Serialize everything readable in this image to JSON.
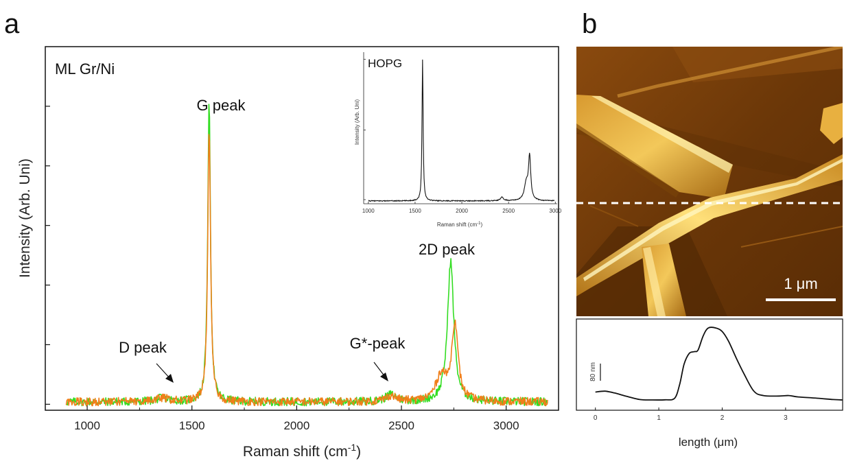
{
  "panel_a": {
    "letter": "a",
    "label": "ML Gr/Ni",
    "annotations": {
      "g_peak": "G peak",
      "d_peak": "D peak",
      "g_star_peak": "G*-peak",
      "d2_peak": "2D peak"
    }
  },
  "panel_b": {
    "letter": "b",
    "scale_bar": "1 μm"
  },
  "inset": {
    "label": "HOPG"
  },
  "colors": {
    "green": "#33dd22",
    "orange": "#f07f1a",
    "black": "#111111",
    "afm_base": "#6b3a08",
    "afm_light": "#f0c040"
  },
  "chart_data": [
    {
      "type": "line",
      "xlabel": "Raman shift (cm-1)",
      "ylabel": "Intensity (Arb. Uni)",
      "xlim": [
        800,
        3250
      ],
      "ylim": [
        -5,
        300
      ],
      "xticks": [
        1000,
        1500,
        2000,
        2500,
        3000
      ],
      "yticks": [
        0,
        50,
        100,
        150,
        200,
        250
      ],
      "x_range": [
        900,
        3200
      ],
      "series": [
        {
          "key": "green",
          "peaks": [
            {
              "center": 1582,
              "height": 250,
              "width": 8
            },
            {
              "center": 2735,
              "height": 118,
              "width": 18
            },
            {
              "center": 2450,
              "height": 6,
              "width": 30
            },
            {
              "center": 1360,
              "height": 3,
              "width": 40
            }
          ]
        },
        {
          "key": "orange",
          "peaks": [
            {
              "center": 1582,
              "height": 230,
              "width": 8
            },
            {
              "center": 2755,
              "height": 65,
              "width": 18
            },
            {
              "center": 2690,
              "height": 22,
              "width": 30
            },
            {
              "center": 2450,
              "height": 5,
              "width": 30
            },
            {
              "center": 1360,
              "height": 3,
              "width": 40
            }
          ]
        }
      ]
    },
    {
      "type": "line",
      "title": "HOPG",
      "xlabel": "Raman shift (cm-1)",
      "ylabel": "Intensity (Arb. Uni)",
      "xlim": [
        950,
        3020
      ],
      "ylim": [
        -2,
        105
      ],
      "xticks": [
        1000,
        1500,
        2000,
        2500,
        3000
      ],
      "peaks": [
        {
          "center": 1580,
          "height": 100,
          "width": 7
        },
        {
          "center": 2690,
          "height": 12,
          "width": 25
        },
        {
          "center": 2725,
          "height": 30,
          "width": 14
        },
        {
          "center": 2430,
          "height": 2.5,
          "width": 20
        }
      ]
    },
    {
      "type": "line",
      "xlabel": "length (μm)",
      "scale_label": "80 nm",
      "xlim": [
        -0.3,
        3.9
      ],
      "xticks": [
        0,
        1,
        2,
        3
      ],
      "points": [
        [
          0,
          16
        ],
        [
          0.15,
          17
        ],
        [
          0.3,
          15
        ],
        [
          0.5,
          11
        ],
        [
          0.7,
          7.5
        ],
        [
          0.9,
          7
        ],
        [
          1.1,
          7.2
        ],
        [
          1.25,
          9
        ],
        [
          1.33,
          25
        ],
        [
          1.4,
          48
        ],
        [
          1.48,
          60
        ],
        [
          1.56,
          62
        ],
        [
          1.62,
          64
        ],
        [
          1.7,
          80
        ],
        [
          1.78,
          89
        ],
        [
          1.9,
          89
        ],
        [
          2.0,
          85
        ],
        [
          2.1,
          74
        ],
        [
          2.22,
          55
        ],
        [
          2.35,
          36
        ],
        [
          2.5,
          17
        ],
        [
          2.65,
          12
        ],
        [
          2.9,
          11.5
        ],
        [
          3.05,
          12
        ],
        [
          3.2,
          10.5
        ],
        [
          3.5,
          9
        ],
        [
          3.75,
          7.5
        ],
        [
          3.9,
          7
        ]
      ]
    }
  ]
}
